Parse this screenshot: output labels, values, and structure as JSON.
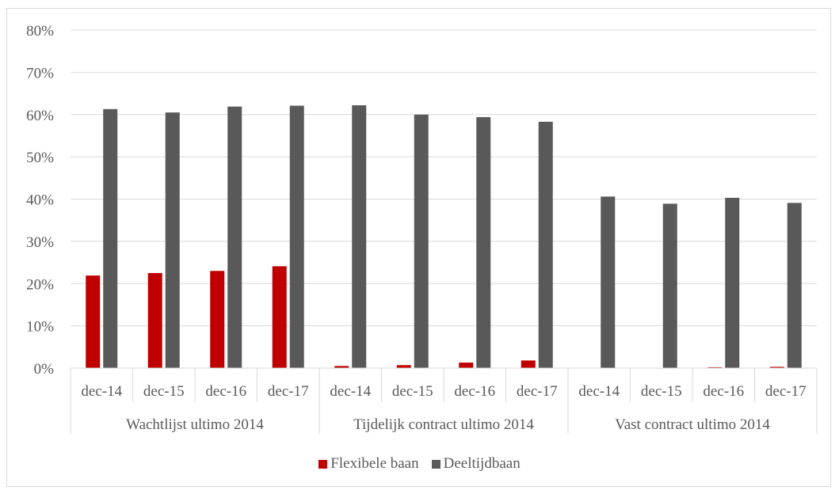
{
  "chart_data": {
    "type": "bar",
    "y_ticks": [
      "0%",
      "10%",
      "20%",
      "30%",
      "40%",
      "50%",
      "60%",
      "70%",
      "80%"
    ],
    "ylim": [
      0,
      80
    ],
    "groups": [
      {
        "label": "Wachtlijst ultimo 2014",
        "categories": [
          "dec-14",
          "dec-15",
          "dec-16",
          "dec-17"
        ]
      },
      {
        "label": "Tijdelijk contract ultimo 2014",
        "categories": [
          "dec-14",
          "dec-15",
          "dec-16",
          "dec-17"
        ]
      },
      {
        "label": "Vast contract ultimo 2014",
        "categories": [
          "dec-14",
          "dec-15",
          "dec-16",
          "dec-17"
        ]
      }
    ],
    "series": [
      {
        "name": "Flexibele baan",
        "color": "#c00000",
        "values": [
          21.9,
          22.5,
          23.0,
          24.1,
          0.5,
          0.7,
          1.3,
          1.8,
          0.0,
          0.0,
          0.2,
          0.3
        ]
      },
      {
        "name": "Deeltijdbaan",
        "color": "#595959",
        "values": [
          61.3,
          60.5,
          61.9,
          62.1,
          62.2,
          60.0,
          59.4,
          58.3,
          40.6,
          38.9,
          40.3,
          39.1
        ]
      }
    ],
    "grid": true,
    "legend_position": "bottom"
  }
}
